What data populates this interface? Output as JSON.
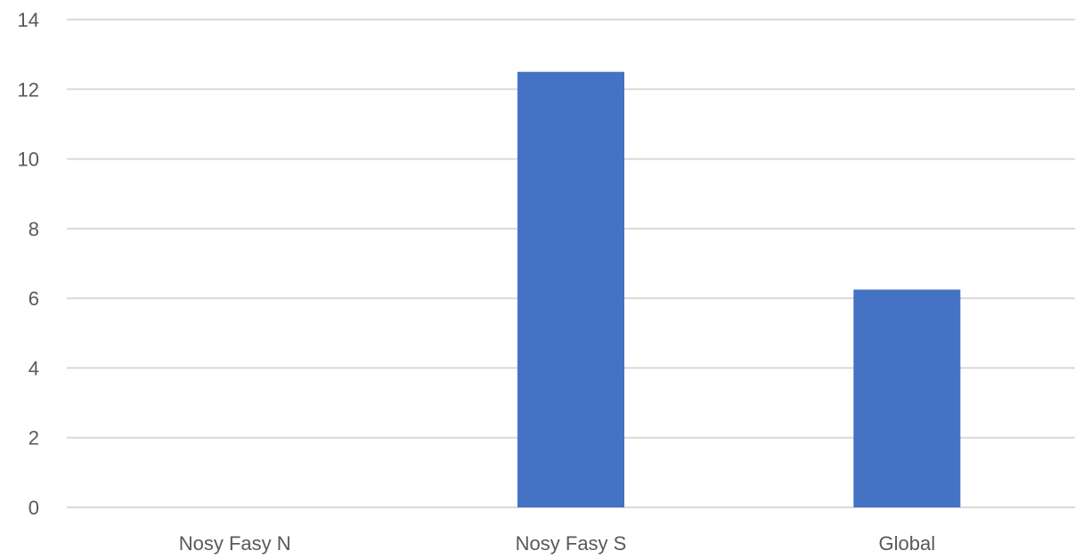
{
  "chart_data": {
    "type": "bar",
    "categories": [
      "Nosy Fasy N",
      "Nosy Fasy S",
      "Global"
    ],
    "values": [
      0,
      12.5,
      6.25
    ],
    "title": "",
    "xlabel": "",
    "ylabel": "",
    "ylim": [
      0,
      14
    ],
    "yticks": [
      0,
      2,
      4,
      6,
      8,
      10,
      12,
      14
    ],
    "grid": true,
    "legend": "none",
    "bar_color": "#4472c4"
  }
}
